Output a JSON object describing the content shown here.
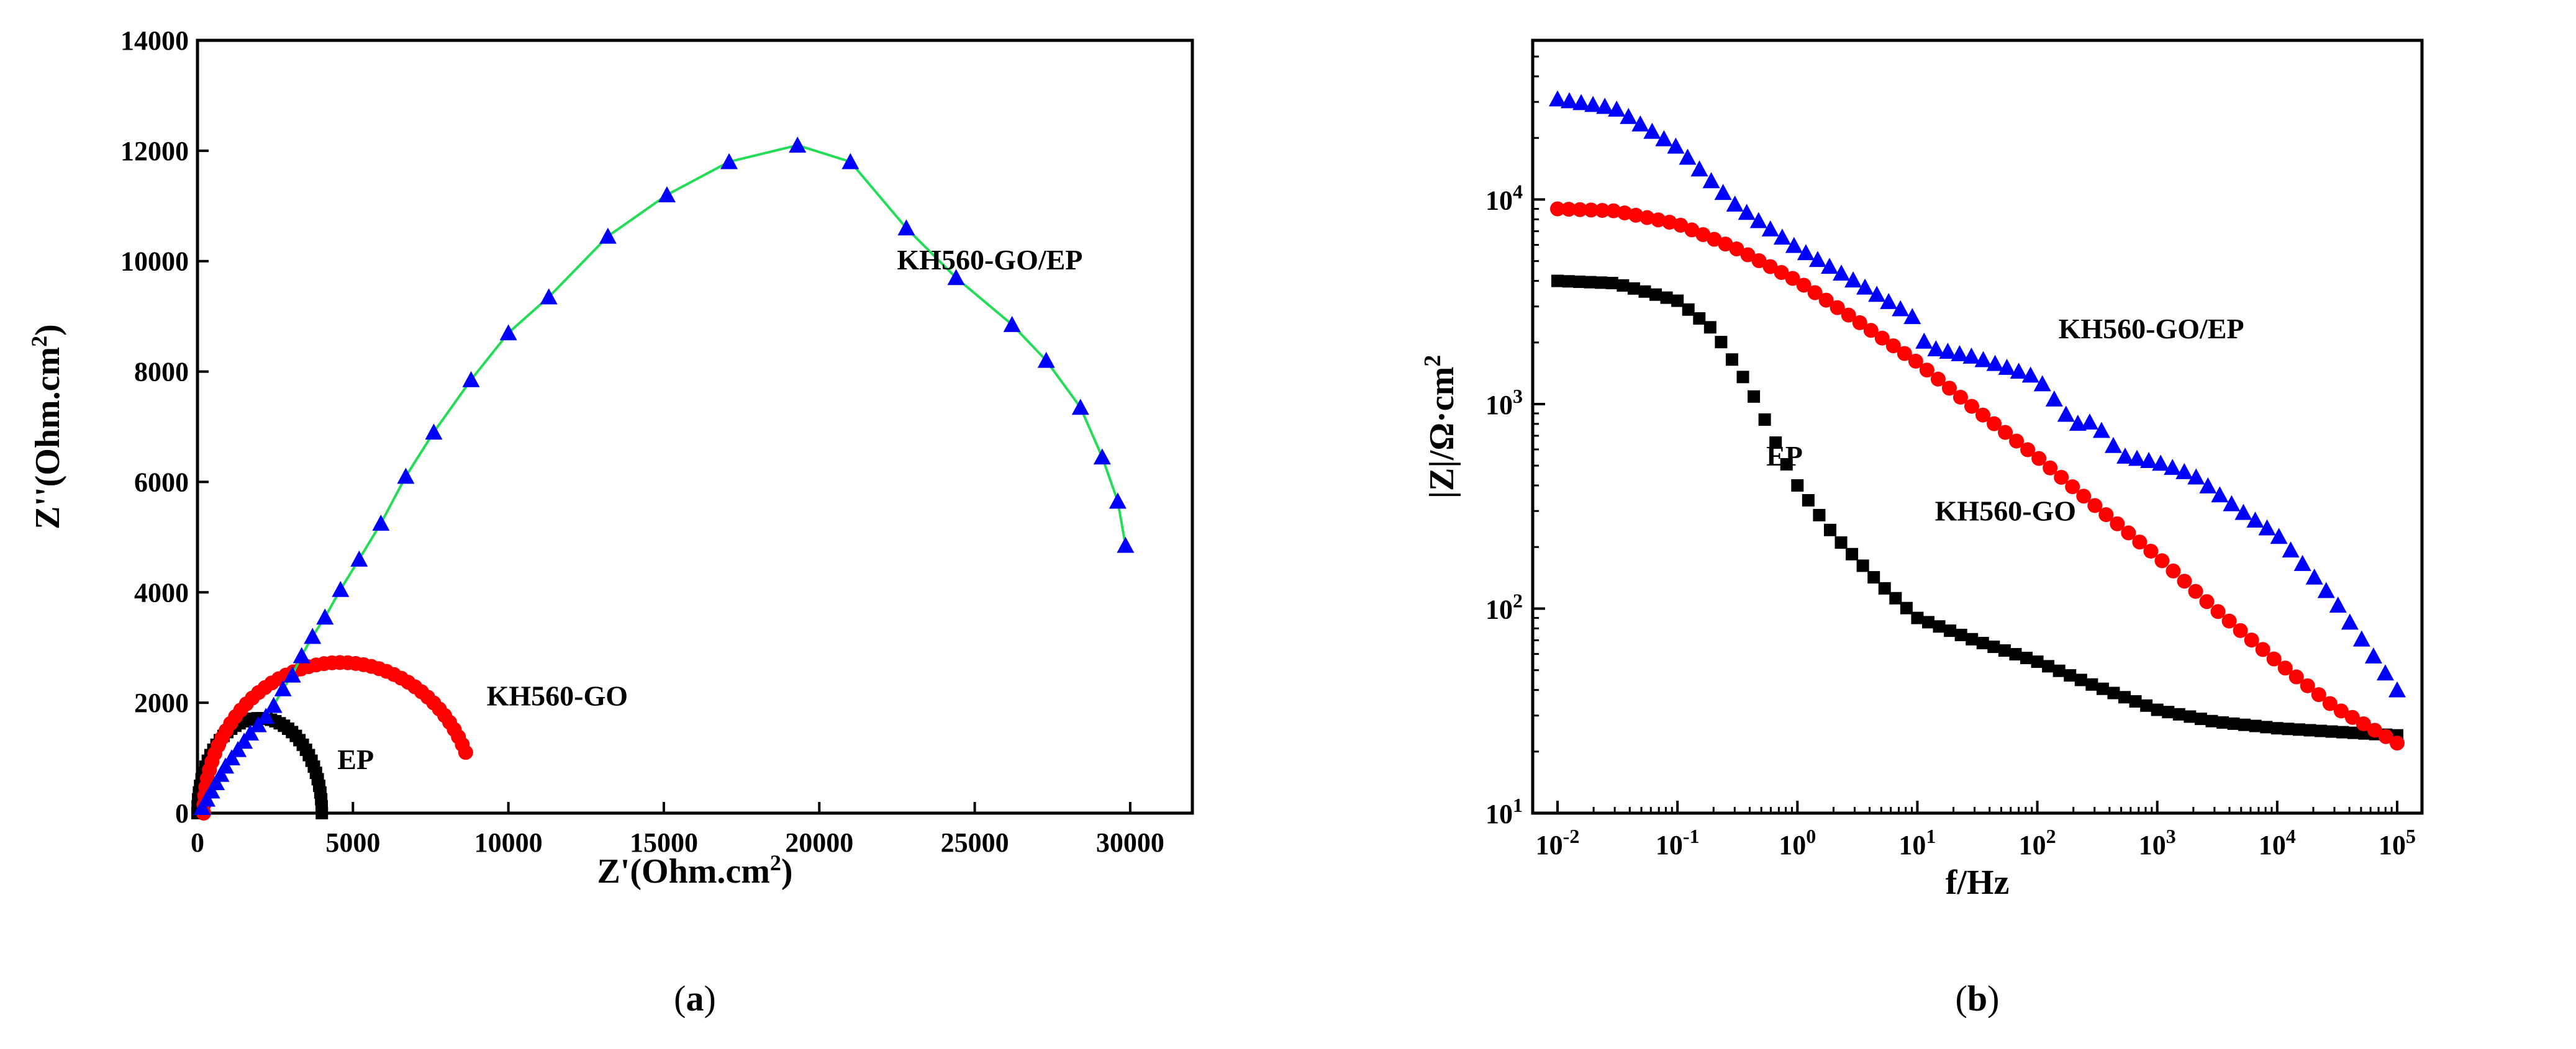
{
  "chart_data": [
    {
      "type": "scatter",
      "panel": "a",
      "caption_prefix": "(",
      "caption_letter": "a",
      "caption_suffix": ")",
      "xlabel": "Z'(Ohm.cm",
      "xlabel_sup": "2",
      "xlabel_end": ")",
      "ylabel": "Z''(Ohm.cm",
      "ylabel_sup": "2",
      "ylabel_end": ")",
      "xlim": [
        0,
        32000
      ],
      "ylim": [
        0,
        14000
      ],
      "xticks": [
        0,
        5000,
        10000,
        15000,
        20000,
        25000,
        30000
      ],
      "yticks": [
        0,
        2000,
        4000,
        6000,
        8000,
        10000,
        12000,
        14000
      ],
      "series": [
        {
          "name": "EP",
          "label": "EP",
          "color": "#000000",
          "marker": "square",
          "arc": {
            "r0": 0,
            "r1": 4000,
            "scale": 0.86,
            "n": 44
          },
          "label_at": [
            4500,
            800
          ]
        },
        {
          "name": "KH560-GO",
          "label": "KH560-GO",
          "color": "#ff0000",
          "marker": "circle",
          "arc": {
            "r0": 200,
            "r1": 9000,
            "scale": 0.62,
            "n": 48,
            "end_y": 1100
          },
          "label_at": [
            9300,
            1950
          ]
        },
        {
          "name": "KH560-GO/EP",
          "label": "KH560-GO/EP",
          "color": "#0000ff",
          "marker": "triangle",
          "line_color": "#22dd55",
          "x": [
            150,
            300,
            450,
            600,
            750,
            900,
            1100,
            1300,
            1500,
            1700,
            1950,
            2200,
            2450,
            2750,
            3050,
            3350,
            3700,
            4100,
            4600,
            5200,
            5900,
            6700,
            7600,
            8800,
            10000,
            11300,
            13200,
            15100,
            17100,
            19300,
            21000,
            22800,
            24400,
            26200,
            27300,
            28400,
            29100,
            29600,
            29850
          ],
          "y": [
            100,
            250,
            400,
            550,
            700,
            850,
            1000,
            1150,
            1300,
            1450,
            1600,
            1750,
            1950,
            2250,
            2500,
            2850,
            3200,
            3550,
            4050,
            4600,
            5250,
            6100,
            6900,
            7850,
            8700,
            9350,
            10450,
            11200,
            11800,
            12100,
            11800,
            10600,
            9700,
            8850,
            8200,
            7350,
            6450,
            5650,
            4850
          ],
          "label_at": [
            22500,
            9850
          ]
        }
      ]
    },
    {
      "type": "line",
      "panel": "b",
      "caption_prefix": "(",
      "caption_letter": "b",
      "caption_suffix": ")",
      "xscale": "log",
      "yscale": "log",
      "xlabel": "f/Hz",
      "ylabel": "|Z|/Ω·cm",
      "ylabel_sup": "2",
      "xlim": [
        0.01,
        100000
      ],
      "ylim": [
        10,
        60000
      ],
      "xticks": [
        {
          "base": "10",
          "exp": "-2"
        },
        {
          "base": "10",
          "exp": "-1"
        },
        {
          "base": "10",
          "exp": "0"
        },
        {
          "base": "10",
          "exp": "1"
        },
        {
          "base": "10",
          "exp": "2"
        },
        {
          "base": "10",
          "exp": "3"
        },
        {
          "base": "10",
          "exp": "4"
        },
        {
          "base": "10",
          "exp": "5"
        }
      ],
      "yticks": [
        {
          "base": "10",
          "exp": "1"
        },
        {
          "base": "10",
          "exp": "2"
        },
        {
          "base": "10",
          "exp": "3"
        },
        {
          "base": "10",
          "exp": "4"
        }
      ],
      "series": [
        {
          "name": "EP",
          "label": "EP",
          "color": "#000000",
          "marker": "square",
          "f": [
            0.01,
            0.03,
            0.1,
            0.2,
            0.4,
            0.7,
            1,
            2,
            5,
            10,
            30,
            100,
            300,
            1000,
            3000,
            10000,
            30000,
            100000
          ],
          "z": [
            4000,
            3900,
            3200,
            2300,
            1200,
            600,
            400,
            230,
            130,
            90,
            70,
            55,
            42,
            32,
            28,
            26,
            25,
            24
          ],
          "n": 78,
          "label_at": [
            0.55,
            500
          ]
        },
        {
          "name": "KH560-GO",
          "label": "KH560-GO",
          "color": "#ff0000",
          "marker": "circle",
          "f": [
            0.01,
            0.03,
            0.1,
            0.3,
            1,
            3,
            10,
            30,
            100,
            300,
            1000,
            3000,
            10000,
            30000,
            100000
          ],
          "z": [
            9000,
            8800,
            7600,
            5800,
            4000,
            2600,
            1600,
            950,
            550,
            320,
            180,
            100,
            55,
            33,
            22
          ],
          "n": 76,
          "label_at": [
            14,
            270
          ]
        },
        {
          "name": "KH560-GO/EP",
          "label": "KH560-GO/EP",
          "color": "#0000ff",
          "marker": "triangle",
          "f": [
            0.01,
            0.03,
            0.1,
            0.3,
            1,
            3,
            9,
            12,
            30,
            100,
            200,
            300,
            500,
            1000,
            2000,
            5000,
            10000,
            30000,
            100000
          ],
          "z": [
            31000,
            28000,
            18000,
            9500,
            5800,
            4000,
            2700,
            1900,
            1700,
            1350,
            800,
            820,
            560,
            520,
            450,
            300,
            230,
            110,
            40
          ],
          "n": 72,
          "label_at": [
            150,
            2100
          ]
        }
      ]
    }
  ]
}
